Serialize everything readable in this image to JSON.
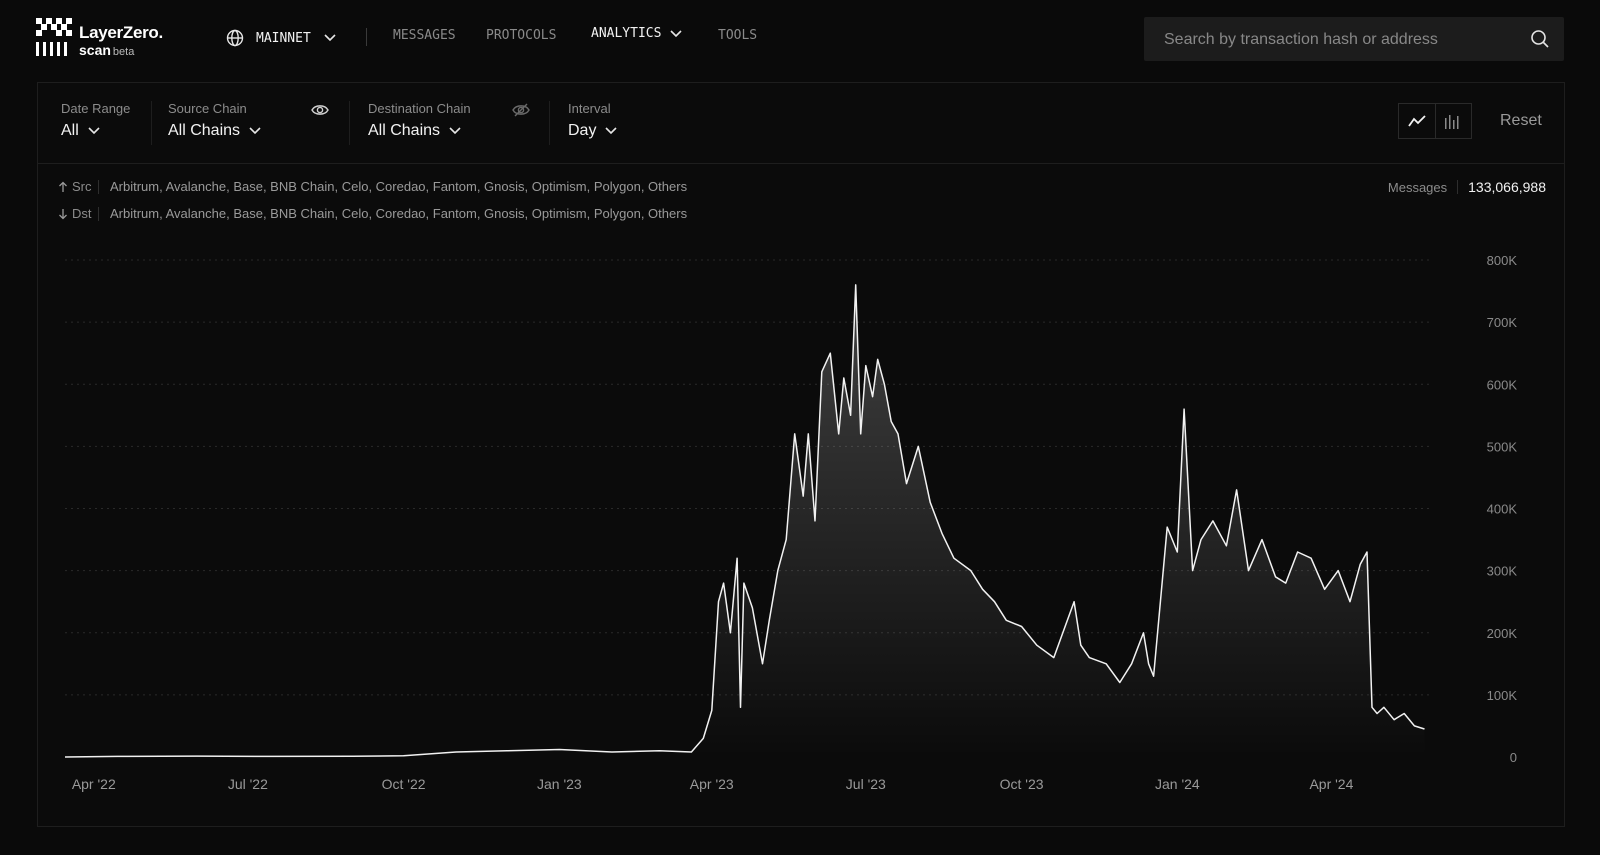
{
  "brand": {
    "name": "LayerZero.",
    "sub": "scan",
    "badge": "beta"
  },
  "nav": {
    "network": "MAINNET",
    "messages": "MESSAGES",
    "protocols": "PROTOCOLS",
    "analytics": "ANALYTICS",
    "tools": "TOOLS"
  },
  "search": {
    "placeholder": "Search by transaction hash or address"
  },
  "filters": {
    "date_range": {
      "label": "Date Range",
      "value": "All"
    },
    "source_chain": {
      "label": "Source Chain",
      "value": "All Chains"
    },
    "destination_chain": {
      "label": "Destination Chain",
      "value": "All Chains"
    },
    "interval": {
      "label": "Interval",
      "value": "Day"
    },
    "reset": "Reset"
  },
  "legend": {
    "src_label": "Src",
    "src_chains": "Arbitrum, Avalanche, Base, BNB Chain, Celo, Coredao, Fantom, Gnosis, Optimism, Polygon, Others",
    "dst_label": "Dst",
    "dst_chains": "Arbitrum, Avalanche, Base, BNB Chain, Celo, Coredao, Fantom, Gnosis, Optimism, Polygon, Others"
  },
  "messages_total": {
    "label": "Messages",
    "value": "133,066,988"
  },
  "chart_data": {
    "type": "area",
    "ylim": [
      0,
      800000
    ],
    "yticks": [
      0,
      100000,
      200000,
      300000,
      400000,
      500000,
      600000,
      700000,
      800000
    ],
    "ytick_labels": [
      "0",
      "100K",
      "200K",
      "300K",
      "400K",
      "500K",
      "600K",
      "700K",
      "800K"
    ],
    "x_range": [
      "2022-03-15",
      "2024-05-31"
    ],
    "xticks": [
      {
        "date": "2022-04-01",
        "label": "Apr '22"
      },
      {
        "date": "2022-07-01",
        "label": "Jul '22"
      },
      {
        "date": "2022-10-01",
        "label": "Oct '22"
      },
      {
        "date": "2023-01-01",
        "label": "Jan '23"
      },
      {
        "date": "2023-04-01",
        "label": "Apr '23"
      },
      {
        "date": "2023-07-01",
        "label": "Jul '23"
      },
      {
        "date": "2023-10-01",
        "label": "Oct '23"
      },
      {
        "date": "2024-01-01",
        "label": "Jan '24"
      },
      {
        "date": "2024-04-01",
        "label": "Apr '24"
      }
    ],
    "grid": true,
    "series": [
      {
        "x": [
          "2022-03-15",
          "2022-04-15",
          "2022-06-01",
          "2022-07-15",
          "2022-09-01",
          "2022-10-01",
          "2022-11-01",
          "2022-12-01",
          "2023-01-01",
          "2023-02-01",
          "2023-03-01",
          "2023-03-20",
          "2023-03-27",
          "2023-04-01",
          "2023-04-05",
          "2023-04-08",
          "2023-04-12",
          "2023-04-16",
          "2023-04-18",
          "2023-04-20",
          "2023-04-25",
          "2023-05-01",
          "2023-05-05",
          "2023-05-10",
          "2023-05-15",
          "2023-05-20",
          "2023-05-25",
          "2023-05-28",
          "2023-06-01",
          "2023-06-05",
          "2023-06-10",
          "2023-06-15",
          "2023-06-18",
          "2023-06-22",
          "2023-06-25",
          "2023-06-28",
          "2023-07-01",
          "2023-07-05",
          "2023-07-08",
          "2023-07-12",
          "2023-07-16",
          "2023-07-20",
          "2023-07-25",
          "2023-08-01",
          "2023-08-08",
          "2023-08-15",
          "2023-08-22",
          "2023-09-01",
          "2023-09-08",
          "2023-09-15",
          "2023-09-22",
          "2023-10-01",
          "2023-10-10",
          "2023-10-20",
          "2023-11-01",
          "2023-11-05",
          "2023-11-10",
          "2023-11-20",
          "2023-11-28",
          "2023-12-05",
          "2023-12-12",
          "2023-12-15",
          "2023-12-18",
          "2023-12-22",
          "2023-12-26",
          "2024-01-01",
          "2024-01-05",
          "2024-01-10",
          "2024-01-15",
          "2024-01-22",
          "2024-01-30",
          "2024-02-05",
          "2024-02-12",
          "2024-02-20",
          "2024-02-28",
          "2024-03-05",
          "2024-03-12",
          "2024-03-20",
          "2024-03-28",
          "2024-04-05",
          "2024-04-12",
          "2024-04-18",
          "2024-04-22",
          "2024-04-25",
          "2024-04-28",
          "2024-05-02",
          "2024-05-08",
          "2024-05-14",
          "2024-05-20",
          "2024-05-26"
        ],
        "y": [
          0,
          1000,
          1500,
          1000,
          1200,
          2000,
          8000,
          10000,
          12000,
          8000,
          10000,
          8000,
          30000,
          75000,
          250000,
          280000,
          200000,
          320000,
          80000,
          280000,
          240000,
          150000,
          220000,
          300000,
          350000,
          520000,
          420000,
          520000,
          380000,
          620000,
          650000,
          520000,
          610000,
          550000,
          760000,
          520000,
          630000,
          580000,
          640000,
          600000,
          540000,
          520000,
          440000,
          500000,
          410000,
          360000,
          320000,
          300000,
          270000,
          250000,
          220000,
          210000,
          180000,
          160000,
          250000,
          180000,
          160000,
          150000,
          120000,
          150000,
          200000,
          150000,
          130000,
          250000,
          370000,
          330000,
          560000,
          300000,
          350000,
          380000,
          340000,
          430000,
          300000,
          350000,
          290000,
          280000,
          330000,
          320000,
          270000,
          300000,
          250000,
          310000,
          330000,
          80000,
          70000,
          80000,
          60000,
          70000,
          50000,
          45000
        ]
      }
    ]
  }
}
